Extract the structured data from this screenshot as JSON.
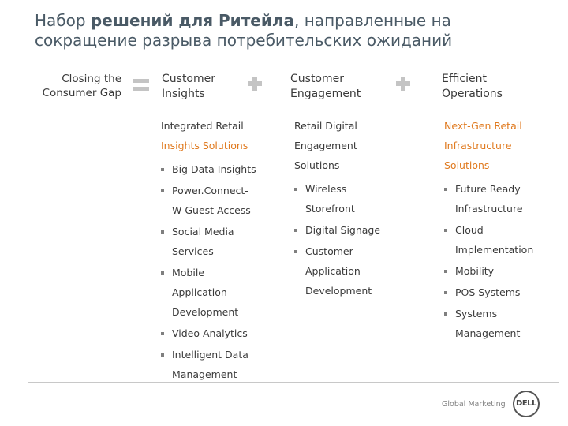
{
  "title": {
    "line1_pre": "Набор ",
    "line1_bold": "решений для Ритейла",
    "line1_post": ", направленные на",
    "line2": "сокращение разрыва потребительских ожиданий"
  },
  "gap_label": {
    "line1": "Closing the",
    "line2": "Consumer Gap"
  },
  "headings": {
    "insights": {
      "line1": "Customer",
      "line2": "Insights"
    },
    "engagement": {
      "line1": "Customer",
      "line2": "Engagement"
    },
    "operations": {
      "line1": "Efficient",
      "line2": "Operations"
    }
  },
  "columns": {
    "insights": {
      "h1": "Integrated Retail",
      "h2": "Insights Solutions",
      "items": [
        [
          "Big Data Insights"
        ],
        [
          "Power.Connect-",
          "W Guest Access"
        ],
        [
          "Social Media",
          "Services"
        ],
        [
          "Mobile",
          "Application",
          "Development"
        ],
        [
          "Video Analytics"
        ],
        [
          "Intelligent Data",
          "Management"
        ]
      ]
    },
    "engagement": {
      "h1": "Retail Digital",
      "h2": "Engagement",
      "h3": "Solutions",
      "items": [
        [
          "Wireless",
          "Storefront"
        ],
        [
          "Digital Signage"
        ],
        [
          "Customer",
          "Application",
          "Development"
        ]
      ]
    },
    "operations": {
      "h1": "Next-Gen Retail",
      "h2": "Infrastructure",
      "h3": "Solutions",
      "items": [
        [
          "Future Ready",
          "Infrastructure"
        ],
        [
          "Cloud",
          "Implementation"
        ],
        [
          "Mobility"
        ],
        [
          "POS Systems"
        ],
        [
          "Systems",
          "Management"
        ]
      ]
    }
  },
  "footer": {
    "text": "Global Marketing",
    "logo": "DELL"
  },
  "colors": {
    "title": "#4a5a66",
    "accent_orange": "#e07a1f",
    "symbol_gray": "#c4c4c4"
  }
}
